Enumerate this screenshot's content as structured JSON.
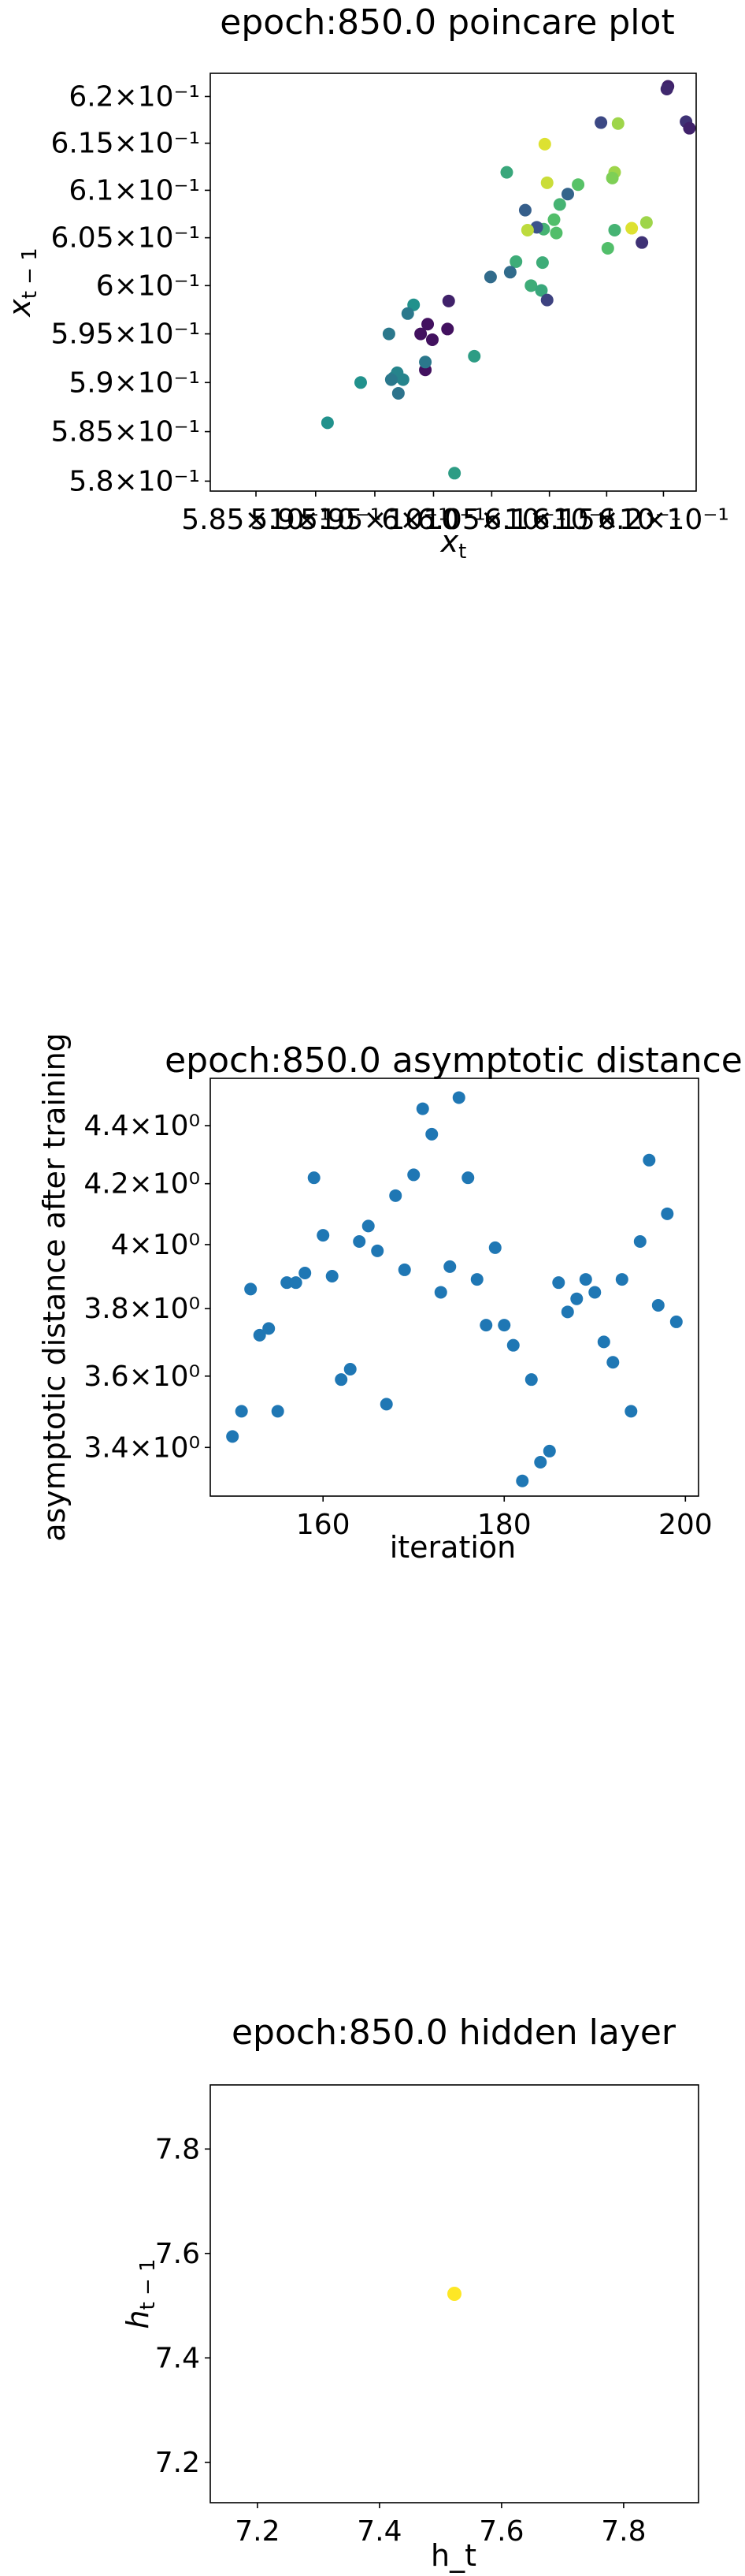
{
  "chart_data": [
    {
      "type": "scatter",
      "title": "epoch:850.0 poincare plot",
      "xlabel": "x_t",
      "ylabel": "x_{t-1}",
      "xscale": "log",
      "yscale": "log",
      "xlim": [
        0.5812,
        0.6229
      ],
      "ylim": [
        0.579,
        0.6225
      ],
      "xticks": [
        0.585,
        0.59,
        0.595,
        0.6,
        0.605,
        0.61,
        0.615,
        0.62
      ],
      "xtick_labels": [
        "5.85×10⁻¹",
        "5.9×10⁻¹",
        "5.95×10⁻¹",
        "6×10⁻¹",
        "6.05×10⁻¹",
        "6.1×10⁻¹",
        "6.15×10⁻¹",
        "6.2×10⁻¹"
      ],
      "yticks": [
        0.58,
        0.585,
        0.59,
        0.595,
        0.6,
        0.605,
        0.61,
        0.615,
        0.62
      ],
      "ytick_labels": [
        "5.8×10⁻¹",
        "5.85×10⁻¹",
        "5.9×10⁻¹",
        "5.95×10⁻¹",
        "6×10⁻¹",
        "6.05×10⁻¹",
        "6.1×10⁻¹",
        "6.15×10⁻¹",
        "6.2×10⁻¹"
      ],
      "colormap": "viridis",
      "grid": false,
      "points": [
        {
          "x": 0.6204,
          "y": 0.6211,
          "c": 0.1
        },
        {
          "x": 0.6203,
          "y": 0.6208,
          "c": 0.12
        },
        {
          "x": 0.622,
          "y": 0.6173,
          "c": 0.15
        },
        {
          "x": 0.6223,
          "y": 0.6166,
          "c": 0.1
        },
        {
          "x": 0.6145,
          "y": 0.6172,
          "c": 0.22
        },
        {
          "x": 0.616,
          "y": 0.6171,
          "c": 0.85
        },
        {
          "x": 0.6096,
          "y": 0.6149,
          "c": 0.95
        },
        {
          "x": 0.6063,
          "y": 0.6119,
          "c": 0.6
        },
        {
          "x": 0.6157,
          "y": 0.6119,
          "c": 0.85
        },
        {
          "x": 0.6155,
          "y": 0.6113,
          "c": 0.8
        },
        {
          "x": 0.6098,
          "y": 0.6108,
          "c": 0.92
        },
        {
          "x": 0.6125,
          "y": 0.6106,
          "c": 0.72
        },
        {
          "x": 0.6116,
          "y": 0.6096,
          "c": 0.32
        },
        {
          "x": 0.6109,
          "y": 0.6085,
          "c": 0.65
        },
        {
          "x": 0.6079,
          "y": 0.6079,
          "c": 0.3
        },
        {
          "x": 0.6104,
          "y": 0.6069,
          "c": 0.7
        },
        {
          "x": 0.6185,
          "y": 0.6066,
          "c": 0.85
        },
        {
          "x": 0.6095,
          "y": 0.6059,
          "c": 0.65
        },
        {
          "x": 0.6172,
          "y": 0.606,
          "c": 0.95
        },
        {
          "x": 0.6089,
          "y": 0.6061,
          "c": 0.25
        },
        {
          "x": 0.6081,
          "y": 0.6058,
          "c": 0.9
        },
        {
          "x": 0.6106,
          "y": 0.6055,
          "c": 0.7
        },
        {
          "x": 0.6157,
          "y": 0.6058,
          "c": 0.65
        },
        {
          "x": 0.6181,
          "y": 0.6045,
          "c": 0.15
        },
        {
          "x": 0.6151,
          "y": 0.6039,
          "c": 0.7
        },
        {
          "x": 0.6094,
          "y": 0.6024,
          "c": 0.62
        },
        {
          "x": 0.6071,
          "y": 0.6025,
          "c": 0.62
        },
        {
          "x": 0.6066,
          "y": 0.6014,
          "c": 0.35
        },
        {
          "x": 0.6049,
          "y": 0.6009,
          "c": 0.35
        },
        {
          "x": 0.6084,
          "y": 0.6,
          "c": 0.62
        },
        {
          "x": 0.6093,
          "y": 0.5995,
          "c": 0.6
        },
        {
          "x": 0.6098,
          "y": 0.5985,
          "c": 0.2
        },
        {
          "x": 0.6013,
          "y": 0.5984,
          "c": 0.1
        },
        {
          "x": 0.5983,
          "y": 0.598,
          "c": 0.5
        },
        {
          "x": 0.5978,
          "y": 0.5971,
          "c": 0.4
        },
        {
          "x": 0.5995,
          "y": 0.596,
          "c": 0.05
        },
        {
          "x": 0.6012,
          "y": 0.5955,
          "c": 0.05
        },
        {
          "x": 0.5989,
          "y": 0.595,
          "c": 0.05
        },
        {
          "x": 0.5962,
          "y": 0.595,
          "c": 0.4
        },
        {
          "x": 0.5999,
          "y": 0.5944,
          "c": 0.05
        },
        {
          "x": 0.6035,
          "y": 0.5927,
          "c": 0.55
        },
        {
          "x": 0.5993,
          "y": 0.5913,
          "c": 0.05
        },
        {
          "x": 0.5993,
          "y": 0.5921,
          "c": 0.4
        },
        {
          "x": 0.5969,
          "y": 0.591,
          "c": 0.45
        },
        {
          "x": 0.5966,
          "y": 0.5905,
          "c": 0.45
        },
        {
          "x": 0.5974,
          "y": 0.5903,
          "c": 0.45
        },
        {
          "x": 0.5964,
          "y": 0.5903,
          "c": 0.4
        },
        {
          "x": 0.5938,
          "y": 0.59,
          "c": 0.5
        },
        {
          "x": 0.597,
          "y": 0.5889,
          "c": 0.38
        },
        {
          "x": 0.591,
          "y": 0.5859,
          "c": 0.5
        },
        {
          "x": 0.6018,
          "y": 0.5808,
          "c": 0.55
        }
      ]
    },
    {
      "type": "scatter",
      "title": "epoch:850.0 asymptotic distance",
      "xlabel": "iteration",
      "ylabel": "asymptotic distance after training",
      "yscale": "log",
      "xlim": [
        147.55,
        201.45
      ],
      "ylim": [
        3.27,
        4.57
      ],
      "xticks": [
        160,
        180,
        200
      ],
      "xtick_labels": [
        "160",
        "180",
        "200"
      ],
      "yticks": [
        3.4,
        3.6,
        3.8,
        4.0,
        4.2,
        4.4
      ],
      "ytick_labels": [
        "3.4×10⁰",
        "3.6×10⁰",
        "3.8×10⁰",
        "4×10⁰",
        "4.2×10⁰",
        "4.4×10⁰"
      ],
      "color": "#1f77b4",
      "grid": false,
      "x": [
        150,
        151,
        152,
        153,
        154,
        155,
        156,
        157,
        158,
        159,
        160,
        161,
        162,
        163,
        164,
        165,
        166,
        167,
        168,
        169,
        170,
        171,
        172,
        173,
        174,
        175,
        176,
        177,
        178,
        179,
        180,
        181,
        182,
        183,
        184,
        185,
        186,
        187,
        188,
        189,
        190,
        191,
        192,
        193,
        194,
        195,
        196,
        197,
        198,
        199
      ],
      "y": [
        3.43,
        3.5,
        3.86,
        3.72,
        3.74,
        3.5,
        3.88,
        3.88,
        3.91,
        4.22,
        4.03,
        3.9,
        3.59,
        3.62,
        4.01,
        4.06,
        3.98,
        3.52,
        4.16,
        3.92,
        4.23,
        4.46,
        4.37,
        3.85,
        3.93,
        4.5,
        4.22,
        3.89,
        3.75,
        3.99,
        3.75,
        3.69,
        3.31,
        3.59,
        3.36,
        3.39,
        3.88,
        3.79,
        3.83,
        3.89,
        3.85,
        3.7,
        3.64,
        3.89,
        3.5,
        4.01,
        4.28,
        3.81,
        4.1,
        3.76
      ]
    },
    {
      "type": "scatter",
      "title": "epoch:850.0 hidden layer",
      "xlabel": "h_t",
      "ylabel": "h_{t-1}",
      "xlim": [
        7.1227,
        7.9227
      ],
      "ylim": [
        7.1227,
        7.9227
      ],
      "xticks": [
        7.2,
        7.4,
        7.6,
        7.8
      ],
      "xtick_labels": [
        "7.2",
        "7.4",
        "7.6",
        "7.8"
      ],
      "yticks": [
        7.2,
        7.4,
        7.6,
        7.8
      ],
      "ytick_labels": [
        "7.2",
        "7.4",
        "7.6",
        "7.8"
      ],
      "color": "#fde725",
      "grid": false,
      "x": [
        7.5227
      ],
      "y": [
        7.5227
      ]
    }
  ]
}
